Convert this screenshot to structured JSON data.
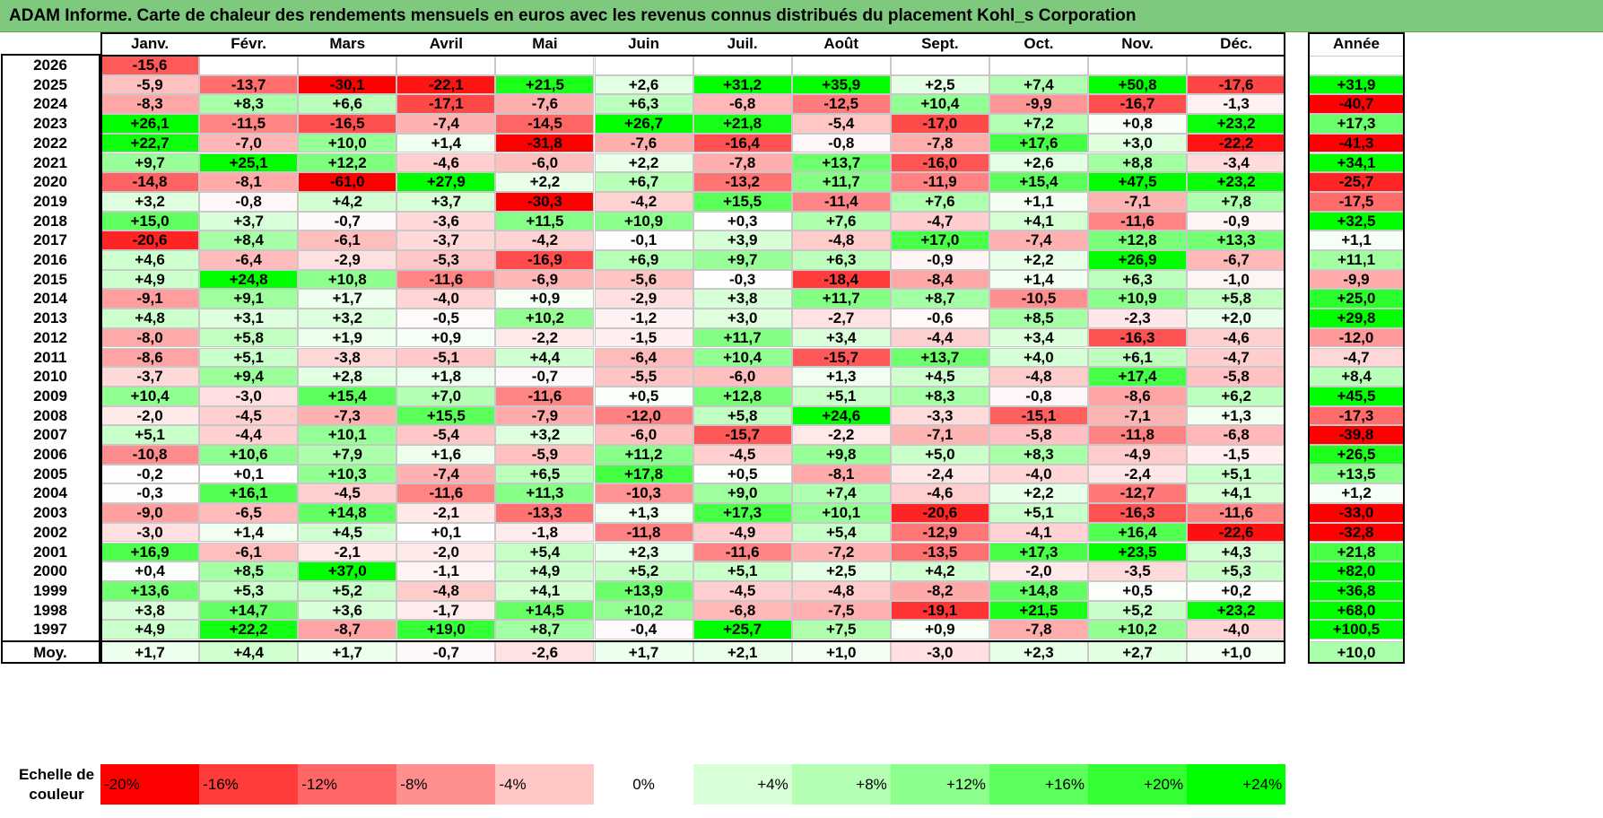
{
  "title": "ADAM Informe. Carte de chaleur des rendements mensuels en euros avec les revenus connus distribués du placement Kohl_s Corporation",
  "chart_data": {
    "type": "heatmap",
    "title": "ADAM Informe. Carte de chaleur des rendements mensuels en euros avec les revenus connus distribués du placement Kohl_s Corporation",
    "months": [
      "Janv.",
      "Févr.",
      "Mars",
      "Avril",
      "Mai",
      "Juin",
      "Juil.",
      "Août",
      "Sept.",
      "Oct.",
      "Nov.",
      "Déc."
    ],
    "year_header": "Année",
    "rows": [
      {
        "year": "2026",
        "months": [
          "-15,6",
          "",
          "",
          "",
          "",
          "",
          "",
          "",
          "",
          "",
          "",
          ""
        ],
        "annual": ""
      },
      {
        "year": "2025",
        "months": [
          "-5,9",
          "-13,7",
          "-30,1",
          "-22,1",
          "+21,5",
          "+2,6",
          "+31,2",
          "+35,9",
          "+2,5",
          "+7,4",
          "+50,8",
          "-17,6"
        ],
        "annual": "+31,9"
      },
      {
        "year": "2024",
        "months": [
          "-8,3",
          "+8,3",
          "+6,6",
          "-17,1",
          "-7,6",
          "+6,3",
          "-6,8",
          "-12,5",
          "+10,4",
          "-9,9",
          "-16,7",
          "-1,3"
        ],
        "annual": "-40,7"
      },
      {
        "year": "2023",
        "months": [
          "+26,1",
          "-11,5",
          "-16,5",
          "-7,4",
          "-14,5",
          "+26,7",
          "+21,8",
          "-5,4",
          "-17,0",
          "+7,2",
          "+0,8",
          "+23,2"
        ],
        "annual": "+17,3"
      },
      {
        "year": "2022",
        "months": [
          "+22,7",
          "-7,0",
          "+10,0",
          "+1,4",
          "-31,8",
          "-7,6",
          "-16,4",
          "-0,8",
          "-7,8",
          "+17,6",
          "+3,0",
          "-22,2"
        ],
        "annual": "-41,3"
      },
      {
        "year": "2021",
        "months": [
          "+9,7",
          "+25,1",
          "+12,2",
          "-4,6",
          "-6,0",
          "+2,2",
          "-7,8",
          "+13,7",
          "-16,0",
          "+2,6",
          "+8,8",
          "-3,4"
        ],
        "annual": "+34,1"
      },
      {
        "year": "2020",
        "months": [
          "-14,8",
          "-8,1",
          "-61,0",
          "+27,9",
          "+2,2",
          "+6,7",
          "-13,2",
          "+11,7",
          "-11,9",
          "+15,4",
          "+47,5",
          "+23,2"
        ],
        "annual": "-25,7"
      },
      {
        "year": "2019",
        "months": [
          "+3,2",
          "-0,8",
          "+4,2",
          "+3,7",
          "-30,3",
          "-4,2",
          "+15,5",
          "-11,4",
          "+7,6",
          "+1,1",
          "-7,1",
          "+7,8"
        ],
        "annual": "-17,5"
      },
      {
        "year": "2018",
        "months": [
          "+15,0",
          "+3,7",
          "-0,7",
          "-3,6",
          "+11,5",
          "+10,9",
          "+0,3",
          "+7,6",
          "-4,7",
          "+4,1",
          "-11,6",
          "-0,9"
        ],
        "annual": "+32,5"
      },
      {
        "year": "2017",
        "months": [
          "-20,6",
          "+8,4",
          "-6,1",
          "-3,7",
          "-4,2",
          "-0,1",
          "+3,9",
          "-4,8",
          "+17,0",
          "-7,4",
          "+12,8",
          "+13,3"
        ],
        "annual": "+1,1"
      },
      {
        "year": "2016",
        "months": [
          "+4,6",
          "-6,4",
          "-2,9",
          "-5,3",
          "-16,9",
          "+6,9",
          "+9,7",
          "+6,3",
          "-0,9",
          "+2,2",
          "+26,9",
          "-6,7"
        ],
        "annual": "+11,1"
      },
      {
        "year": "2015",
        "months": [
          "+4,9",
          "+24,8",
          "+10,8",
          "-11,6",
          "-6,9",
          "-5,6",
          "-0,3",
          "-18,4",
          "-8,4",
          "+1,4",
          "+6,3",
          "-1,0"
        ],
        "annual": "-9,9"
      },
      {
        "year": "2014",
        "months": [
          "-9,1",
          "+9,1",
          "+1,7",
          "-4,0",
          "+0,9",
          "-2,9",
          "+3,8",
          "+11,7",
          "+8,7",
          "-10,5",
          "+10,9",
          "+5,8"
        ],
        "annual": "+25,0"
      },
      {
        "year": "2013",
        "months": [
          "+4,8",
          "+3,1",
          "+3,2",
          "-0,5",
          "+10,2",
          "-1,2",
          "+3,0",
          "-2,7",
          "-0,6",
          "+8,5",
          "-2,3",
          "+2,0"
        ],
        "annual": "+29,8"
      },
      {
        "year": "2012",
        "months": [
          "-8,0",
          "+5,8",
          "+1,9",
          "+0,9",
          "-2,2",
          "-1,5",
          "+11,7",
          "+3,4",
          "-4,4",
          "+3,4",
          "-16,3",
          "-4,6"
        ],
        "annual": "-12,0"
      },
      {
        "year": "2011",
        "months": [
          "-8,6",
          "+5,1",
          "-3,8",
          "-5,1",
          "+4,4",
          "-6,4",
          "+10,4",
          "-15,7",
          "+13,7",
          "+4,0",
          "+6,1",
          "-4,7"
        ],
        "annual": "-4,7"
      },
      {
        "year": "2010",
        "months": [
          "-3,7",
          "+9,4",
          "+2,8",
          "+1,8",
          "-0,7",
          "-5,5",
          "-6,0",
          "+1,3",
          "+4,5",
          "-4,8",
          "+17,4",
          "-5,8"
        ],
        "annual": "+8,4"
      },
      {
        "year": "2009",
        "months": [
          "+10,4",
          "-3,0",
          "+15,4",
          "+7,0",
          "-11,6",
          "+0,5",
          "+12,8",
          "+5,1",
          "+8,3",
          "-0,8",
          "-8,6",
          "+6,2"
        ],
        "annual": "+45,5"
      },
      {
        "year": "2008",
        "months": [
          "-2,0",
          "-4,5",
          "-7,3",
          "+15,5",
          "-7,9",
          "-12,0",
          "+5,8",
          "+24,6",
          "-3,3",
          "-15,1",
          "-7,1",
          "+1,3"
        ],
        "annual": "-17,3"
      },
      {
        "year": "2007",
        "months": [
          "+5,1",
          "-4,4",
          "+10,1",
          "-5,4",
          "+3,2",
          "-6,0",
          "-15,7",
          "-2,2",
          "-7,1",
          "-5,8",
          "-11,8",
          "-6,8"
        ],
        "annual": "-39,8"
      },
      {
        "year": "2006",
        "months": [
          "-10,8",
          "+10,6",
          "+7,9",
          "+1,6",
          "-5,9",
          "+11,2",
          "-4,5",
          "+9,8",
          "+5,0",
          "+8,3",
          "-4,9",
          "-1,5"
        ],
        "annual": "+26,5"
      },
      {
        "year": "2005",
        "months": [
          "-0,2",
          "+0,1",
          "+10,3",
          "-7,4",
          "+6,5",
          "+17,8",
          "+0,5",
          "-8,1",
          "-2,4",
          "-4,0",
          "-2,4",
          "+5,1"
        ],
        "annual": "+13,5"
      },
      {
        "year": "2004",
        "months": [
          "-0,3",
          "+16,1",
          "-4,5",
          "-11,6",
          "+11,3",
          "-10,3",
          "+9,0",
          "+7,4",
          "-4,6",
          "+2,2",
          "-12,7",
          "+4,1"
        ],
        "annual": "+1,2"
      },
      {
        "year": "2003",
        "months": [
          "-9,0",
          "-6,5",
          "+14,8",
          "-2,1",
          "-13,3",
          "+1,3",
          "+17,3",
          "+10,1",
          "-20,6",
          "+5,1",
          "-16,3",
          "-11,6"
        ],
        "annual": "-33,0"
      },
      {
        "year": "2002",
        "months": [
          "-3,0",
          "+1,4",
          "+4,5",
          "+0,1",
          "-1,8",
          "-11,8",
          "-4,9",
          "+5,4",
          "-12,9",
          "-4,1",
          "+16,4",
          "-22,6"
        ],
        "annual": "-32,8"
      },
      {
        "year": "2001",
        "months": [
          "+16,9",
          "-6,1",
          "-2,1",
          "-2,0",
          "+5,4",
          "+2,3",
          "-11,6",
          "-7,2",
          "-13,5",
          "+17,3",
          "+23,5",
          "+4,3"
        ],
        "annual": "+21,8"
      },
      {
        "year": "2000",
        "months": [
          "+0,4",
          "+8,5",
          "+37,0",
          "-1,1",
          "+4,9",
          "+5,2",
          "+5,1",
          "+2,5",
          "+4,2",
          "-2,0",
          "-3,5",
          "+5,3"
        ],
        "annual": "+82,0"
      },
      {
        "year": "1999",
        "months": [
          "+13,6",
          "+5,3",
          "+5,2",
          "-4,8",
          "+4,1",
          "+13,9",
          "-4,5",
          "-4,8",
          "-8,2",
          "+14,8",
          "+0,5",
          "+0,2"
        ],
        "annual": "+36,8"
      },
      {
        "year": "1998",
        "months": [
          "+3,8",
          "+14,7",
          "+3,6",
          "-1,7",
          "+14,5",
          "+10,2",
          "-6,8",
          "-7,5",
          "-19,1",
          "+21,5",
          "+5,2",
          "+23,2"
        ],
        "annual": "+68,0"
      },
      {
        "year": "1997",
        "months": [
          "+4,9",
          "+22,2",
          "-8,7",
          "+19,0",
          "+8,7",
          "-0,4",
          "+25,7",
          "+7,5",
          "+0,9",
          "-7,8",
          "+10,2",
          "-4,0"
        ],
        "annual": "+100,5"
      }
    ],
    "average": {
      "label": "Moy.",
      "months": [
        "+1,7",
        "+4,4",
        "+1,7",
        "-0,7",
        "-2,6",
        "+1,7",
        "+2,1",
        "+1,0",
        "-3,0",
        "+2,3",
        "+2,7",
        "+1,0"
      ],
      "annual": "+10,0"
    },
    "color_scale": {
      "label": "Echelle de couleur",
      "steps": [
        "-20%",
        "-16%",
        "-12%",
        "-8%",
        "-4%",
        "0%",
        "+4%",
        "+8%",
        "+12%",
        "+16%",
        "+20%",
        "+24%"
      ],
      "values": [
        -20,
        -16,
        -12,
        -8,
        -4,
        0,
        4,
        8,
        12,
        16,
        20,
        24
      ],
      "colors": [
        "#ff0000",
        "#ff3b3b",
        "#ff6666",
        "#ff8f8f",
        "#ffc6c6",
        "#ffffff",
        "#d9ffd9",
        "#b4ffb4",
        "#8cff8c",
        "#5cff5c",
        "#33ff33",
        "#00ff00"
      ]
    }
  }
}
